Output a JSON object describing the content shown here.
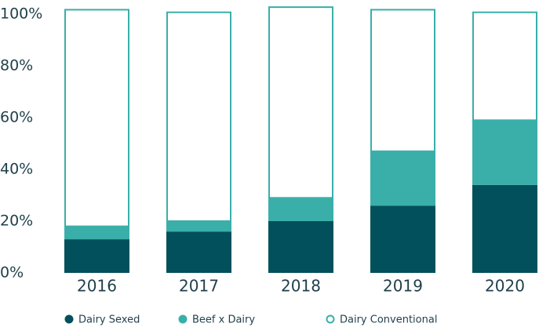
{
  "chart_data": {
    "type": "stacked_bar",
    "categories": [
      "2016",
      "2017",
      "2018",
      "2019",
      "2020"
    ],
    "series": [
      {
        "name": "Dairy Sexed",
        "color": "#02505c",
        "values": [
          13,
          16,
          20,
          26,
          34
        ]
      },
      {
        "name": "Beef x Dairy",
        "color": "#3aafa9",
        "values": [
          5,
          4,
          9,
          21,
          25
        ]
      },
      {
        "name": "Dairy Conventional",
        "color": "#3aafa9",
        "hollow": true,
        "values": [
          84,
          81,
          74,
          55,
          42
        ]
      }
    ],
    "ylim": [
      0,
      105
    ],
    "yticks": [
      {
        "value": 0,
        "label": "0%"
      },
      {
        "value": 20,
        "label": "20%"
      },
      {
        "value": 40,
        "label": "40%"
      },
      {
        "value": 60,
        "label": "60%"
      },
      {
        "value": 80,
        "label": "80%"
      },
      {
        "value": 100,
        "label": "100%"
      }
    ],
    "legend": "bottom"
  }
}
